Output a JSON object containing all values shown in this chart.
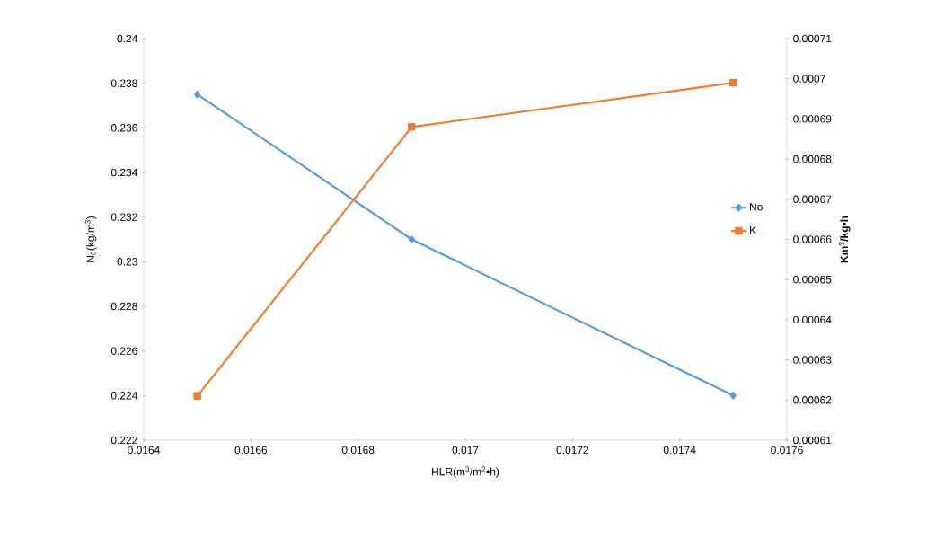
{
  "chart_data": {
    "type": "line",
    "xlabel": "HLR(m$^{3}$/m$^{2}$•h)",
    "ylabel": "N$_{0}$(kg/m$^{3}$)",
    "y2label": "Km$^{3}$/kg•h",
    "x": [
      0.0165,
      0.0169,
      0.0175
    ],
    "series": [
      {
        "name": "No",
        "color": "#5b9bd5",
        "marker": "diamond",
        "values": [
          0.2375,
          0.231,
          0.224
        ]
      },
      {
        "name": "K",
        "color": "#ed7d31",
        "marker": "square",
        "axis": "y2",
        "values": [
          0.000621,
          0.000688,
          0.000699
        ]
      }
    ],
    "xlim": [
      0.0164,
      0.0176
    ],
    "xticks": [
      0.0164,
      0.0166,
      0.0168,
      0.017,
      0.0172,
      0.0174,
      0.0176
    ],
    "ylim": [
      0.222,
      0.24
    ],
    "yticks": [
      0.222,
      0.224,
      0.226,
      0.228,
      0.23,
      0.232,
      0.234,
      0.236,
      0.238,
      0.24
    ],
    "y2lim": [
      0.00061,
      0.00071
    ],
    "y2ticks": [
      0.00061,
      0.00062,
      0.00063,
      0.00064,
      0.00065,
      0.00066,
      0.00067,
      0.00068,
      0.00069,
      0.0007,
      0.00071
    ],
    "legend": "right",
    "grid": false,
    "line_style": "solid"
  }
}
